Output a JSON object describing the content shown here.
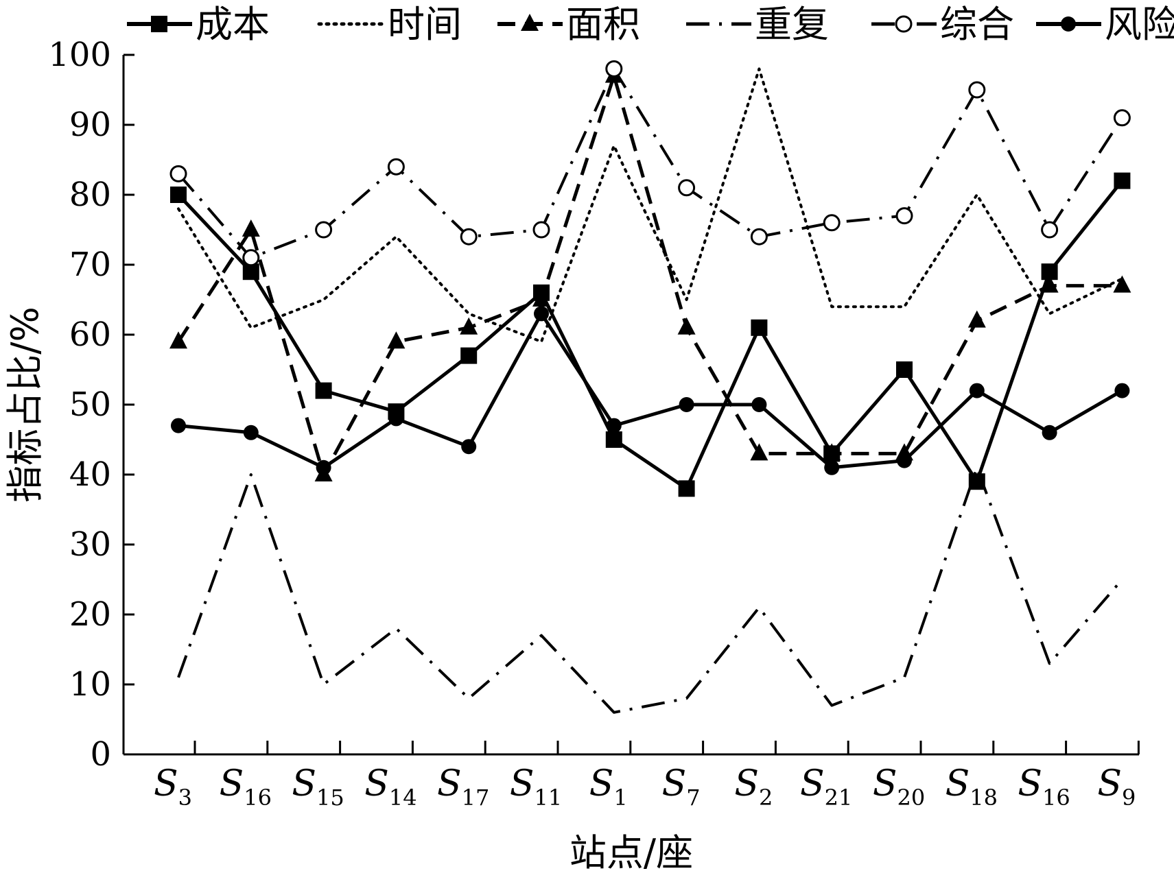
{
  "chart_data": {
    "type": "line",
    "xlabel": "站点/座",
    "ylabel": "指标占比/%",
    "ylim": [
      0,
      100
    ],
    "yticks": [
      "0",
      "10",
      "20",
      "30",
      "40",
      "50",
      "60",
      "70",
      "80",
      "90",
      "100"
    ],
    "categories": [
      {
        "main": "S",
        "sub": "3"
      },
      {
        "main": "S",
        "sub": "16"
      },
      {
        "main": "S",
        "sub": "15"
      },
      {
        "main": "S",
        "sub": "14"
      },
      {
        "main": "S",
        "sub": "17"
      },
      {
        "main": "S",
        "sub": "11"
      },
      {
        "main": "S",
        "sub": "1"
      },
      {
        "main": "S",
        "sub": "7"
      },
      {
        "main": "S",
        "sub": "2"
      },
      {
        "main": "S",
        "sub": "21"
      },
      {
        "main": "S",
        "sub": "20"
      },
      {
        "main": "S",
        "sub": "18"
      },
      {
        "main": "S",
        "sub": "16"
      },
      {
        "main": "S",
        "sub": "9"
      }
    ],
    "legend_position": "top",
    "grid": false,
    "series": [
      {
        "name": "成本",
        "style": "solid",
        "marker": "square-filled",
        "color": "#000000",
        "values": [
          80,
          69,
          52,
          49,
          57,
          66,
          45,
          38,
          61,
          43,
          55,
          39,
          69,
          82
        ]
      },
      {
        "name": "时间",
        "style": "dotted",
        "marker": "none",
        "color": "#000000",
        "values": [
          78,
          61,
          65,
          74,
          63,
          59,
          87,
          65,
          98,
          64,
          64,
          80,
          63,
          68
        ]
      },
      {
        "name": "面积",
        "style": "dashed",
        "marker": "triangle-filled",
        "color": "#000000",
        "values": [
          59,
          75,
          40,
          59,
          61,
          65,
          97,
          61,
          43,
          43,
          43,
          62,
          67,
          67
        ]
      },
      {
        "name": "重复",
        "style": "dashdot",
        "marker": "none",
        "color": "#000000",
        "values": [
          11,
          40,
          10,
          18,
          8,
          17,
          6,
          8,
          21,
          7,
          11,
          41,
          13,
          25
        ]
      },
      {
        "name": "综合",
        "style": "dashdot",
        "marker": "circle-open",
        "color": "#000000",
        "values": [
          83,
          71,
          75,
          84,
          74,
          75,
          98,
          81,
          74,
          76,
          77,
          95,
          75,
          91
        ]
      },
      {
        "name": "风险",
        "style": "solid",
        "marker": "circle-filled",
        "color": "#000000",
        "values": [
          47,
          46,
          41,
          48,
          44,
          63,
          47,
          50,
          50,
          41,
          42,
          52,
          46,
          52
        ]
      }
    ]
  }
}
